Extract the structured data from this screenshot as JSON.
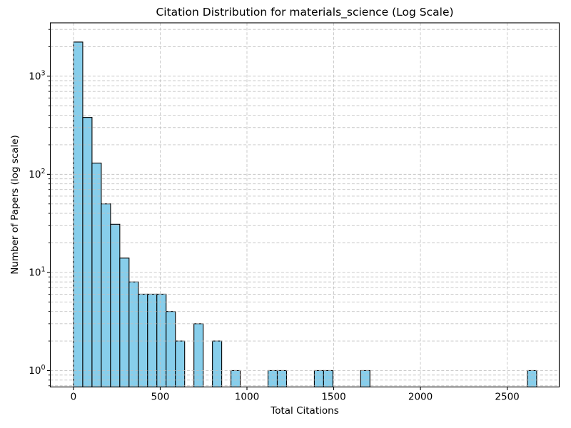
{
  "chart_data": {
    "type": "bar",
    "subtype": "histogram",
    "title": "Citation Distribution for materials_science (Log Scale)",
    "xlabel": "Total Citations",
    "ylabel": "Number of Papers (log scale)",
    "x_scale": "linear",
    "y_scale": "log",
    "xlim": [
      -133.5,
      2800
    ],
    "ylim": [
      0.68,
      3500
    ],
    "bins": {
      "start": 0,
      "width": 53.4,
      "count": 50
    },
    "values": [
      2230,
      380,
      130,
      50,
      31,
      14,
      8,
      6,
      6,
      6,
      4,
      2,
      0,
      3,
      0,
      2,
      0,
      1,
      0,
      0,
      0,
      1,
      1,
      0,
      0,
      0,
      1,
      1,
      0,
      0,
      0,
      1,
      0,
      0,
      0,
      0,
      0,
      0,
      0,
      0,
      0,
      0,
      0,
      0,
      0,
      0,
      0,
      0,
      0,
      1
    ],
    "xticks": [
      0,
      500,
      1000,
      1500,
      2000,
      2500
    ],
    "yticks": [
      {
        "value": 1,
        "base": "10",
        "exp": "0"
      },
      {
        "value": 10,
        "base": "10",
        "exp": "1"
      },
      {
        "value": 100,
        "base": "10",
        "exp": "2"
      },
      {
        "value": 1000,
        "base": "10",
        "exp": "3"
      }
    ],
    "grid": {
      "which": "both",
      "linestyle": "dashed",
      "on": true
    },
    "legend_position": "none",
    "colors": {
      "bar_fill": "#87CEEB",
      "bar_edge": "#000000",
      "grid": "#bfbfbf",
      "axis": "#000000",
      "text": "#000000",
      "background": "#ffffff"
    }
  }
}
